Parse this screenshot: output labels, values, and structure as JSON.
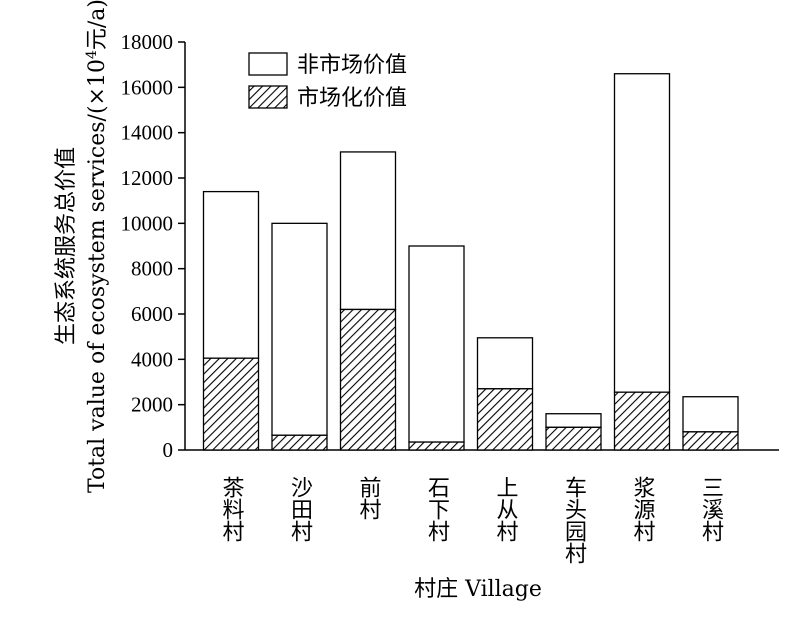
{
  "chart_data": {
    "type": "bar",
    "stacked": true,
    "categories": [
      "茶料村",
      "沙田村",
      "前村",
      "石下村",
      "上从村",
      "车头园村",
      "浆源村",
      "三溪村"
    ],
    "series": [
      {
        "name": "市场化价值",
        "values": [
          4050,
          650,
          6200,
          350,
          2700,
          1000,
          2550,
          800
        ],
        "pattern": "hatched"
      },
      {
        "name": "非市场价值",
        "values": [
          7350,
          9350,
          6950,
          8650,
          2250,
          600,
          14050,
          1550
        ],
        "pattern": "white"
      }
    ],
    "ylim": [
      0,
      18000
    ],
    "yticks": [
      "0",
      "2000",
      "4000",
      "6000",
      "8000",
      "10000",
      "12000",
      "14000",
      "16000",
      "18000"
    ],
    "xlabel": "村庄 Village",
    "ylabel_line1": "生态系统服务总价值",
    "ylabel_line2_pre": "Total value of ecosystem services/(×10",
    "ylabel_sup": "4",
    "ylabel_line2_post": "元/a)",
    "legend": [
      "非市场价值",
      "市场化价值"
    ],
    "legend_position": "top-left",
    "grid": false
  }
}
